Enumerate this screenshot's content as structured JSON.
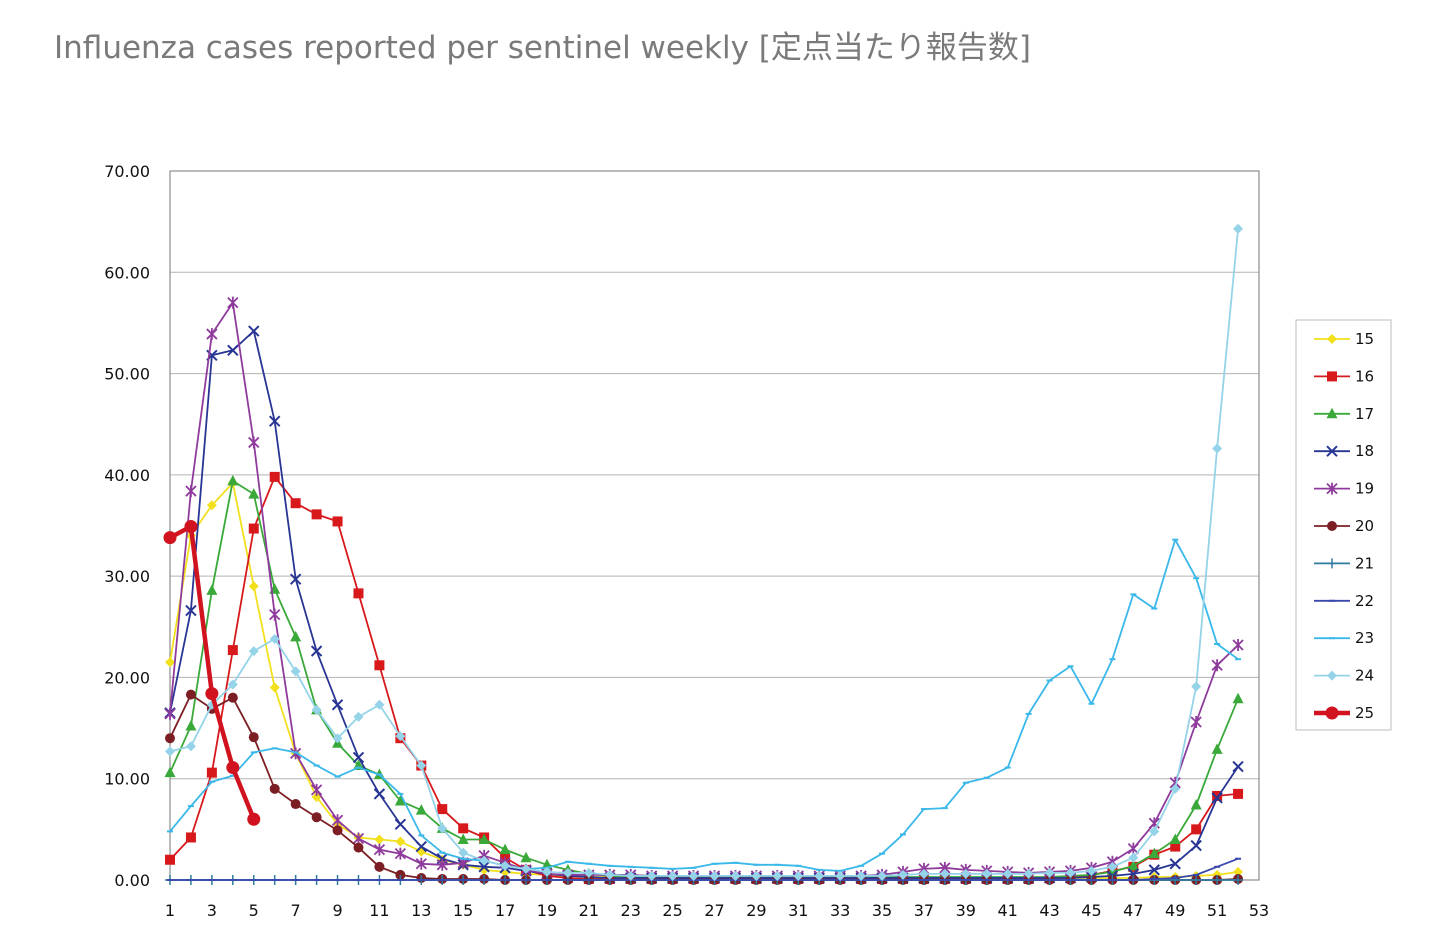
{
  "page": {
    "title": "Influenza cases reported per sentinel weekly [定点当たり報告数]"
  },
  "chart_data": {
    "type": "line",
    "title": "",
    "xlabel": "",
    "ylabel": "",
    "xlim": [
      1,
      53
    ],
    "ylim": [
      0,
      70
    ],
    "x_ticks": [
      "1",
      "3",
      "5",
      "7",
      "9",
      "11",
      "13",
      "15",
      "17",
      "19",
      "21",
      "23",
      "25",
      "27",
      "29",
      "31",
      "33",
      "35",
      "37",
      "39",
      "41",
      "43",
      "45",
      "47",
      "49",
      "51",
      "53"
    ],
    "y_ticks": [
      "0.00",
      "10.00",
      "20.00",
      "30.00",
      "40.00",
      "50.00",
      "60.00",
      "70.00"
    ],
    "grid": "horizontal",
    "legend_position": "right",
    "series": [
      {
        "name": "15",
        "color": "#f2e01c",
        "marker": "diamond",
        "values": [
          21.5,
          34,
          37,
          39.2,
          29,
          19,
          12.5,
          8.2,
          5.5,
          4.2,
          4,
          3.8,
          2.8,
          2,
          1.5,
          1,
          0.8,
          0.6,
          0.5,
          0.4,
          0.3,
          0.3,
          0.2,
          0.2,
          0.2,
          0.2,
          0.2,
          0.2,
          0.2,
          0.2,
          0.2,
          0.2,
          0.2,
          0.2,
          0.2,
          0.2,
          0.2,
          0.2,
          0.2,
          0.2,
          0.2,
          0.2,
          0.2,
          0.2,
          0.2,
          0.2,
          0.2,
          0.3,
          0.3,
          0.4,
          0.5,
          0.8
        ]
      },
      {
        "name": "16",
        "color": "#d7191c",
        "marker": "square",
        "values": [
          2,
          4.2,
          10.6,
          22.7,
          34.7,
          39.8,
          37.2,
          36.1,
          35.4,
          28.3,
          21.2,
          14,
          11.3,
          7,
          5.1,
          4.2,
          2.2,
          1,
          0.4,
          0.2,
          0.1,
          0.1,
          0.1,
          0.1,
          0.1,
          0.1,
          0.1,
          0.1,
          0.1,
          0.1,
          0.1,
          0.1,
          0.1,
          0.1,
          0.1,
          0.1,
          0.1,
          0.1,
          0.1,
          0.1,
          0.1,
          0.1,
          0.2,
          0.2,
          0.5,
          0.9,
          1.3,
          2.5,
          3.3,
          5,
          8.3,
          8.5
        ]
      },
      {
        "name": "17",
        "color": "#3aa93a",
        "marker": "triangle",
        "values": [
          10.6,
          15.2,
          28.6,
          39.4,
          38.1,
          28.7,
          24,
          16.8,
          13.5,
          11.3,
          10.4,
          7.8,
          6.9,
          5.1,
          4,
          4,
          3,
          2.2,
          1.5,
          1,
          0.6,
          0.4,
          0.3,
          0.3,
          0.3,
          0.3,
          0.3,
          0.3,
          0.3,
          0.3,
          0.3,
          0.3,
          0.3,
          0.3,
          0.3,
          0.3,
          0.3,
          0.3,
          0.3,
          0.3,
          0.3,
          0.3,
          0.3,
          0.4,
          0.5,
          0.8,
          1.4,
          2.6,
          4,
          7.4,
          12.9,
          17.9
        ]
      },
      {
        "name": "18",
        "color": "#283593",
        "marker": "x",
        "values": [
          16.5,
          26.6,
          51.8,
          52.3,
          54.2,
          45.3,
          29.7,
          22.6,
          17.3,
          12.1,
          8.5,
          5.5,
          3.3,
          2.1,
          1.5,
          1.3,
          1.2,
          0.9,
          0.6,
          0.4,
          0.3,
          0.2,
          0.2,
          0.2,
          0.2,
          0.2,
          0.2,
          0.2,
          0.2,
          0.2,
          0.2,
          0.2,
          0.2,
          0.2,
          0.2,
          0.2,
          0.2,
          0.2,
          0.2,
          0.2,
          0.2,
          0.2,
          0.2,
          0.2,
          0.3,
          0.4,
          0.6,
          1,
          1.6,
          3.4,
          8.1,
          11.2
        ]
      },
      {
        "name": "19",
        "color": "#8e3b9c",
        "marker": "star",
        "values": [
          16.4,
          38.4,
          53.9,
          57,
          43.2,
          26.2,
          12.5,
          8.9,
          5.9,
          4.1,
          3,
          2.6,
          1.6,
          1.5,
          1.7,
          2.4,
          1.7,
          1,
          0.6,
          0.5,
          0.5,
          0.5,
          0.5,
          0.4,
          0.4,
          0.4,
          0.4,
          0.4,
          0.4,
          0.4,
          0.4,
          0.4,
          0.4,
          0.4,
          0.5,
          0.8,
          1.1,
          1.2,
          1,
          0.9,
          0.8,
          0.7,
          0.8,
          0.9,
          1.2,
          1.8,
          3.1,
          5.6,
          9.6,
          15.6,
          21.2,
          23.2
        ]
      },
      {
        "name": "20",
        "color": "#7b1f24",
        "marker": "circle",
        "values": [
          14,
          18.3,
          16.9,
          18,
          14.1,
          9,
          7.5,
          6.2,
          4.9,
          3.2,
          1.3,
          0.5,
          0.2,
          0.1,
          0.1,
          0.1,
          0,
          0,
          0,
          0,
          0,
          0,
          0,
          0,
          0,
          0,
          0,
          0,
          0,
          0,
          0,
          0,
          0,
          0,
          0,
          0,
          0,
          0,
          0,
          0,
          0,
          0,
          0,
          0,
          0,
          0,
          0,
          0,
          0,
          0,
          0,
          0.1
        ]
      },
      {
        "name": "21",
        "color": "#2e7aa0",
        "marker": "plus",
        "values": [
          0,
          0,
          0,
          0,
          0,
          0,
          0,
          0,
          0,
          0,
          0,
          0,
          0,
          0,
          0,
          0,
          0,
          0,
          0,
          0,
          0,
          0,
          0,
          0,
          0,
          0,
          0,
          0,
          0,
          0,
          0,
          0,
          0,
          0,
          0,
          0,
          0,
          0,
          0,
          0,
          0,
          0,
          0,
          0,
          0,
          0,
          0,
          0,
          0,
          0,
          0,
          0
        ]
      },
      {
        "name": "22",
        "color": "#3949ab",
        "marker": "dash",
        "values": [
          0,
          0,
          0,
          0,
          0,
          0,
          0,
          0,
          0,
          0,
          0,
          0,
          0,
          0,
          0,
          0,
          0,
          0,
          0,
          0,
          0,
          0,
          0,
          0,
          0,
          0,
          0,
          0,
          0,
          0,
          0,
          0,
          0,
          0,
          0,
          0,
          0,
          0,
          0,
          0,
          0,
          0,
          0,
          0,
          0,
          0,
          0,
          0.1,
          0.2,
          0.5,
          1.3,
          2.1
        ]
      },
      {
        "name": "23",
        "color": "#3ab8ea",
        "marker": "dash",
        "values": [
          4.8,
          7.3,
          9.7,
          10.3,
          12.6,
          13,
          12.6,
          11.3,
          10.2,
          11.1,
          10.4,
          8.5,
          4.4,
          2.7,
          2.1,
          1.9,
          1.4,
          1.1,
          1.2,
          1.8,
          1.6,
          1.4,
          1.3,
          1.2,
          1.1,
          1.2,
          1.6,
          1.7,
          1.5,
          1.5,
          1.4,
          1,
          0.9,
          1.4,
          2.6,
          4.5,
          7,
          7.1,
          9.6,
          10.1,
          11.1,
          16.4,
          19.7,
          21.1,
          17.4,
          21.8,
          28.2,
          26.8,
          33.6,
          29.8,
          23.3,
          21.8
        ]
      },
      {
        "name": "24",
        "color": "#94d3e8",
        "marker": "diamond",
        "values": [
          12.7,
          13.2,
          17.3,
          19.3,
          22.6,
          23.8,
          20.6,
          16.8,
          14,
          16.1,
          17.3,
          14.2,
          11.3,
          5.1,
          2.7,
          1.9,
          1.4,
          1.1,
          0.8,
          0.7,
          0.7,
          0.5,
          0.4,
          0.4,
          0.4,
          0.4,
          0.4,
          0.4,
          0.4,
          0.4,
          0.4,
          0.4,
          0.4,
          0.4,
          0.4,
          0.5,
          0.6,
          0.6,
          0.6,
          0.6,
          0.6,
          0.6,
          0.7,
          0.7,
          0.9,
          1.3,
          2.2,
          4.8,
          9,
          19.1,
          42.6,
          64.3
        ]
      },
      {
        "name": "25",
        "color": "#d1131f",
        "marker": "circle-large",
        "values": [
          33.8,
          34.9,
          18.4,
          11.1,
          6
        ]
      }
    ]
  }
}
